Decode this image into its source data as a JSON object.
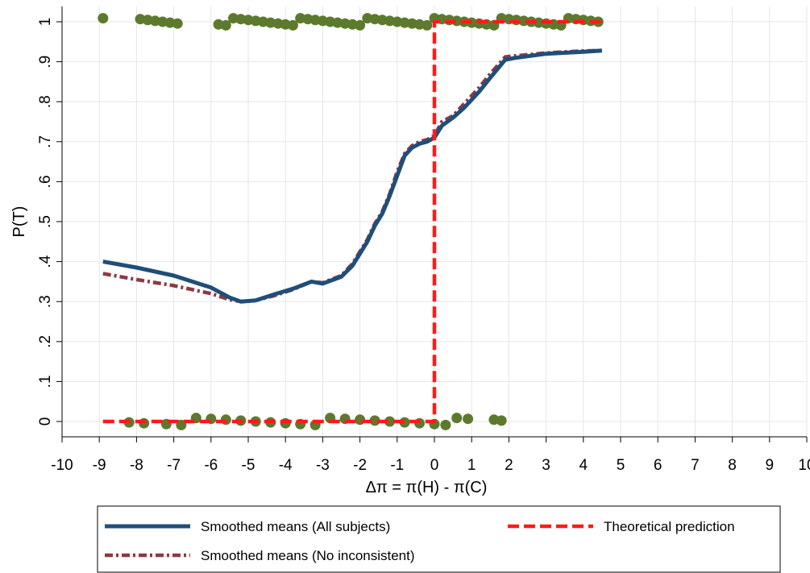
{
  "chart_data": {
    "type": "line",
    "xlabel": "Δπ = π(H) - π(C)",
    "ylabel": "P(T)",
    "xlim": [
      -10,
      10
    ],
    "ylim": [
      0,
      1
    ],
    "grid": true,
    "x_ticks": [
      -10,
      -9,
      -8,
      -7,
      -6,
      -5,
      -4,
      -3,
      -2,
      -1,
      0,
      1,
      2,
      3,
      4,
      5,
      6,
      7,
      8,
      9,
      10
    ],
    "x_tick_labels": [
      "-10",
      "-9",
      "-8",
      "-7",
      "-6",
      "-5",
      "-4",
      "-3",
      "-2",
      "-1",
      "0",
      "1",
      "2",
      "3",
      "4",
      "5",
      "6",
      "7",
      "8",
      "9",
      "10"
    ],
    "y_ticks": [
      0,
      0.1,
      0.2,
      0.3,
      0.4,
      0.5,
      0.6,
      0.7,
      0.8,
      0.9,
      1
    ],
    "y_tick_labels": [
      "0",
      ".1",
      ".2",
      ".3",
      ".4",
      ".5",
      ".6",
      ".7",
      ".8",
      ".9",
      "1"
    ],
    "legend_position": "bottom",
    "series": [
      {
        "name": "Smoothed means (All subjects)",
        "style": "solid",
        "color": "#1f4e79",
        "points": [
          [
            -8.9,
            0.4
          ],
          [
            -8,
            0.385
          ],
          [
            -7,
            0.365
          ],
          [
            -6,
            0.335
          ],
          [
            -5.5,
            0.31
          ],
          [
            -5.2,
            0.3
          ],
          [
            -4.8,
            0.303
          ],
          [
            -4.3,
            0.318
          ],
          [
            -3.8,
            0.332
          ],
          [
            -3.3,
            0.35
          ],
          [
            -3,
            0.345
          ],
          [
            -2.5,
            0.362
          ],
          [
            -2.2,
            0.39
          ],
          [
            -2,
            0.42
          ],
          [
            -1.8,
            0.45
          ],
          [
            -1.6,
            0.49
          ],
          [
            -1.4,
            0.52
          ],
          [
            -1.2,
            0.565
          ],
          [
            -1,
            0.615
          ],
          [
            -0.8,
            0.665
          ],
          [
            -0.6,
            0.685
          ],
          [
            -0.4,
            0.695
          ],
          [
            -0.2,
            0.7
          ],
          [
            0,
            0.71
          ],
          [
            0.2,
            0.74
          ],
          [
            0.5,
            0.76
          ],
          [
            0.8,
            0.785
          ],
          [
            1.2,
            0.825
          ],
          [
            1.5,
            0.86
          ],
          [
            1.9,
            0.905
          ],
          [
            2.2,
            0.91
          ],
          [
            3,
            0.92
          ],
          [
            4,
            0.925
          ],
          [
            4.5,
            0.928
          ]
        ]
      },
      {
        "name": "Smoothed means (No inconsistent)",
        "style": "dash-dot",
        "color": "#8b3a44",
        "points": [
          [
            -8.9,
            0.37
          ],
          [
            -8,
            0.355
          ],
          [
            -7,
            0.34
          ],
          [
            -6,
            0.32
          ],
          [
            -5.5,
            0.305
          ],
          [
            -5.2,
            0.3
          ],
          [
            -4.8,
            0.303
          ],
          [
            -4.3,
            0.315
          ],
          [
            -3.8,
            0.33
          ],
          [
            -3.3,
            0.35
          ],
          [
            -3,
            0.347
          ],
          [
            -2.5,
            0.365
          ],
          [
            -2.2,
            0.395
          ],
          [
            -2,
            0.425
          ],
          [
            -1.8,
            0.455
          ],
          [
            -1.6,
            0.495
          ],
          [
            -1.4,
            0.525
          ],
          [
            -1.2,
            0.57
          ],
          [
            -1,
            0.625
          ],
          [
            -0.8,
            0.67
          ],
          [
            -0.6,
            0.69
          ],
          [
            -0.4,
            0.7
          ],
          [
            -0.2,
            0.705
          ],
          [
            0,
            0.715
          ],
          [
            0.2,
            0.75
          ],
          [
            0.5,
            0.765
          ],
          [
            0.8,
            0.795
          ],
          [
            1.2,
            0.835
          ],
          [
            1.5,
            0.87
          ],
          [
            1.9,
            0.912
          ],
          [
            2.2,
            0.915
          ],
          [
            3,
            0.922
          ],
          [
            4,
            0.927
          ],
          [
            4.5,
            0.928
          ]
        ]
      },
      {
        "name": "Theoretical prediction",
        "style": "dashed",
        "color": "#ff1a1a",
        "points": [
          [
            -8.9,
            0
          ],
          [
            0,
            0
          ],
          [
            0,
            1
          ],
          [
            4.5,
            1
          ]
        ]
      },
      {
        "name": "",
        "type": "scatter",
        "color": "#5c7a2e",
        "jitter": true,
        "points": [
          [
            -8.9,
            1
          ],
          [
            -7.9,
            1
          ],
          [
            -7.7,
            1
          ],
          [
            -7.5,
            1
          ],
          [
            -7.3,
            1
          ],
          [
            -7.1,
            1
          ],
          [
            -6.9,
            1
          ],
          [
            -5.8,
            1
          ],
          [
            -5.6,
            1
          ],
          [
            -5.4,
            1
          ],
          [
            -5.2,
            1
          ],
          [
            -5.0,
            1
          ],
          [
            -4.8,
            1
          ],
          [
            -4.6,
            1
          ],
          [
            -4.4,
            1
          ],
          [
            -4.2,
            1
          ],
          [
            -4.0,
            1
          ],
          [
            -3.8,
            1
          ],
          [
            -3.6,
            1
          ],
          [
            -3.4,
            1
          ],
          [
            -3.2,
            1
          ],
          [
            -3.0,
            1
          ],
          [
            -2.8,
            1
          ],
          [
            -2.6,
            1
          ],
          [
            -2.4,
            1
          ],
          [
            -2.2,
            1
          ],
          [
            -2.0,
            1
          ],
          [
            -1.8,
            1
          ],
          [
            -1.6,
            1
          ],
          [
            -1.4,
            1
          ],
          [
            -1.2,
            1
          ],
          [
            -1.0,
            1
          ],
          [
            -0.8,
            1
          ],
          [
            -0.6,
            1
          ],
          [
            -0.4,
            1
          ],
          [
            -0.2,
            1
          ],
          [
            0,
            1
          ],
          [
            0.2,
            1
          ],
          [
            0.4,
            1
          ],
          [
            0.6,
            1
          ],
          [
            0.8,
            1
          ],
          [
            1.0,
            1
          ],
          [
            1.2,
            1
          ],
          [
            1.4,
            1
          ],
          [
            1.6,
            1
          ],
          [
            1.8,
            1
          ],
          [
            2.0,
            1
          ],
          [
            2.2,
            1
          ],
          [
            2.4,
            1
          ],
          [
            2.6,
            1
          ],
          [
            2.8,
            1
          ],
          [
            3.0,
            1
          ],
          [
            3.2,
            1
          ],
          [
            3.4,
            1
          ],
          [
            3.6,
            1
          ],
          [
            3.8,
            1
          ],
          [
            4.0,
            1
          ],
          [
            4.2,
            1
          ],
          [
            4.4,
            1
          ],
          [
            -8.2,
            0
          ],
          [
            -7.8,
            0
          ],
          [
            -7.2,
            0
          ],
          [
            -6.8,
            0
          ],
          [
            -6.4,
            0
          ],
          [
            -6.0,
            0
          ],
          [
            -5.6,
            0
          ],
          [
            -5.2,
            0
          ],
          [
            -4.8,
            0
          ],
          [
            -4.4,
            0
          ],
          [
            -4.0,
            0
          ],
          [
            -3.6,
            0
          ],
          [
            -3.2,
            0
          ],
          [
            -2.8,
            0
          ],
          [
            -2.4,
            0
          ],
          [
            -2.0,
            0
          ],
          [
            -1.6,
            0
          ],
          [
            -1.2,
            0
          ],
          [
            -0.8,
            0
          ],
          [
            -0.4,
            0
          ],
          [
            0,
            0
          ],
          [
            0.3,
            0
          ],
          [
            0.6,
            0
          ],
          [
            0.9,
            0
          ],
          [
            1.6,
            0
          ],
          [
            1.8,
            0
          ]
        ]
      }
    ]
  }
}
